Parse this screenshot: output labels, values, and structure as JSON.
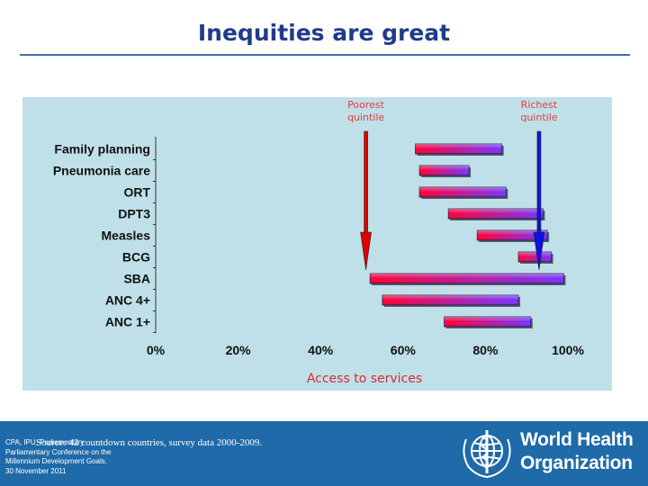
{
  "slide": {
    "title": "Inequities are great"
  },
  "chart_data": {
    "type": "range-bar",
    "categories": [
      "Family planning",
      "Pneumonia care",
      "ORT",
      "DPT3",
      "Measles",
      "BCG",
      "SBA",
      "ANC 4+",
      "ANC 1+"
    ],
    "ranges": [
      [
        63,
        84
      ],
      [
        64,
        76
      ],
      [
        64,
        85
      ],
      [
        71,
        94
      ],
      [
        78,
        95
      ],
      [
        88,
        96
      ],
      [
        52,
        99
      ],
      [
        55,
        88
      ],
      [
        70,
        91
      ]
    ],
    "xlim": [
      0,
      100
    ],
    "xticks": [
      "0%",
      "20%",
      "40%",
      "60%",
      "80%",
      "100%"
    ],
    "xlabel": "Access to services",
    "markers": [
      {
        "label_line1": "Poorest",
        "label_line2": "quintile",
        "value": 51,
        "color": "#e00000"
      },
      {
        "label_line1": "Richest",
        "label_line2": "quintile",
        "value": 93,
        "color": "#1010e0"
      }
    ],
    "colors": {
      "start": "#ff0033",
      "end": "#7733ff",
      "axis": "#333333",
      "axis_title": "#d03030",
      "marker_label": "#e04040"
    }
  },
  "footer": {
    "source": "Source: 42 countdown countries, survey data 2000-2009.",
    "conference_lines": [
      "CPA, IPU, Parliamentary",
      "Parliamentary Conference on the",
      "Millennium Development Goals.",
      "30 November 2011"
    ],
    "logo_line1": "World Health",
    "logo_line2": "Organization",
    "emblem_icon": "who-emblem-icon"
  }
}
